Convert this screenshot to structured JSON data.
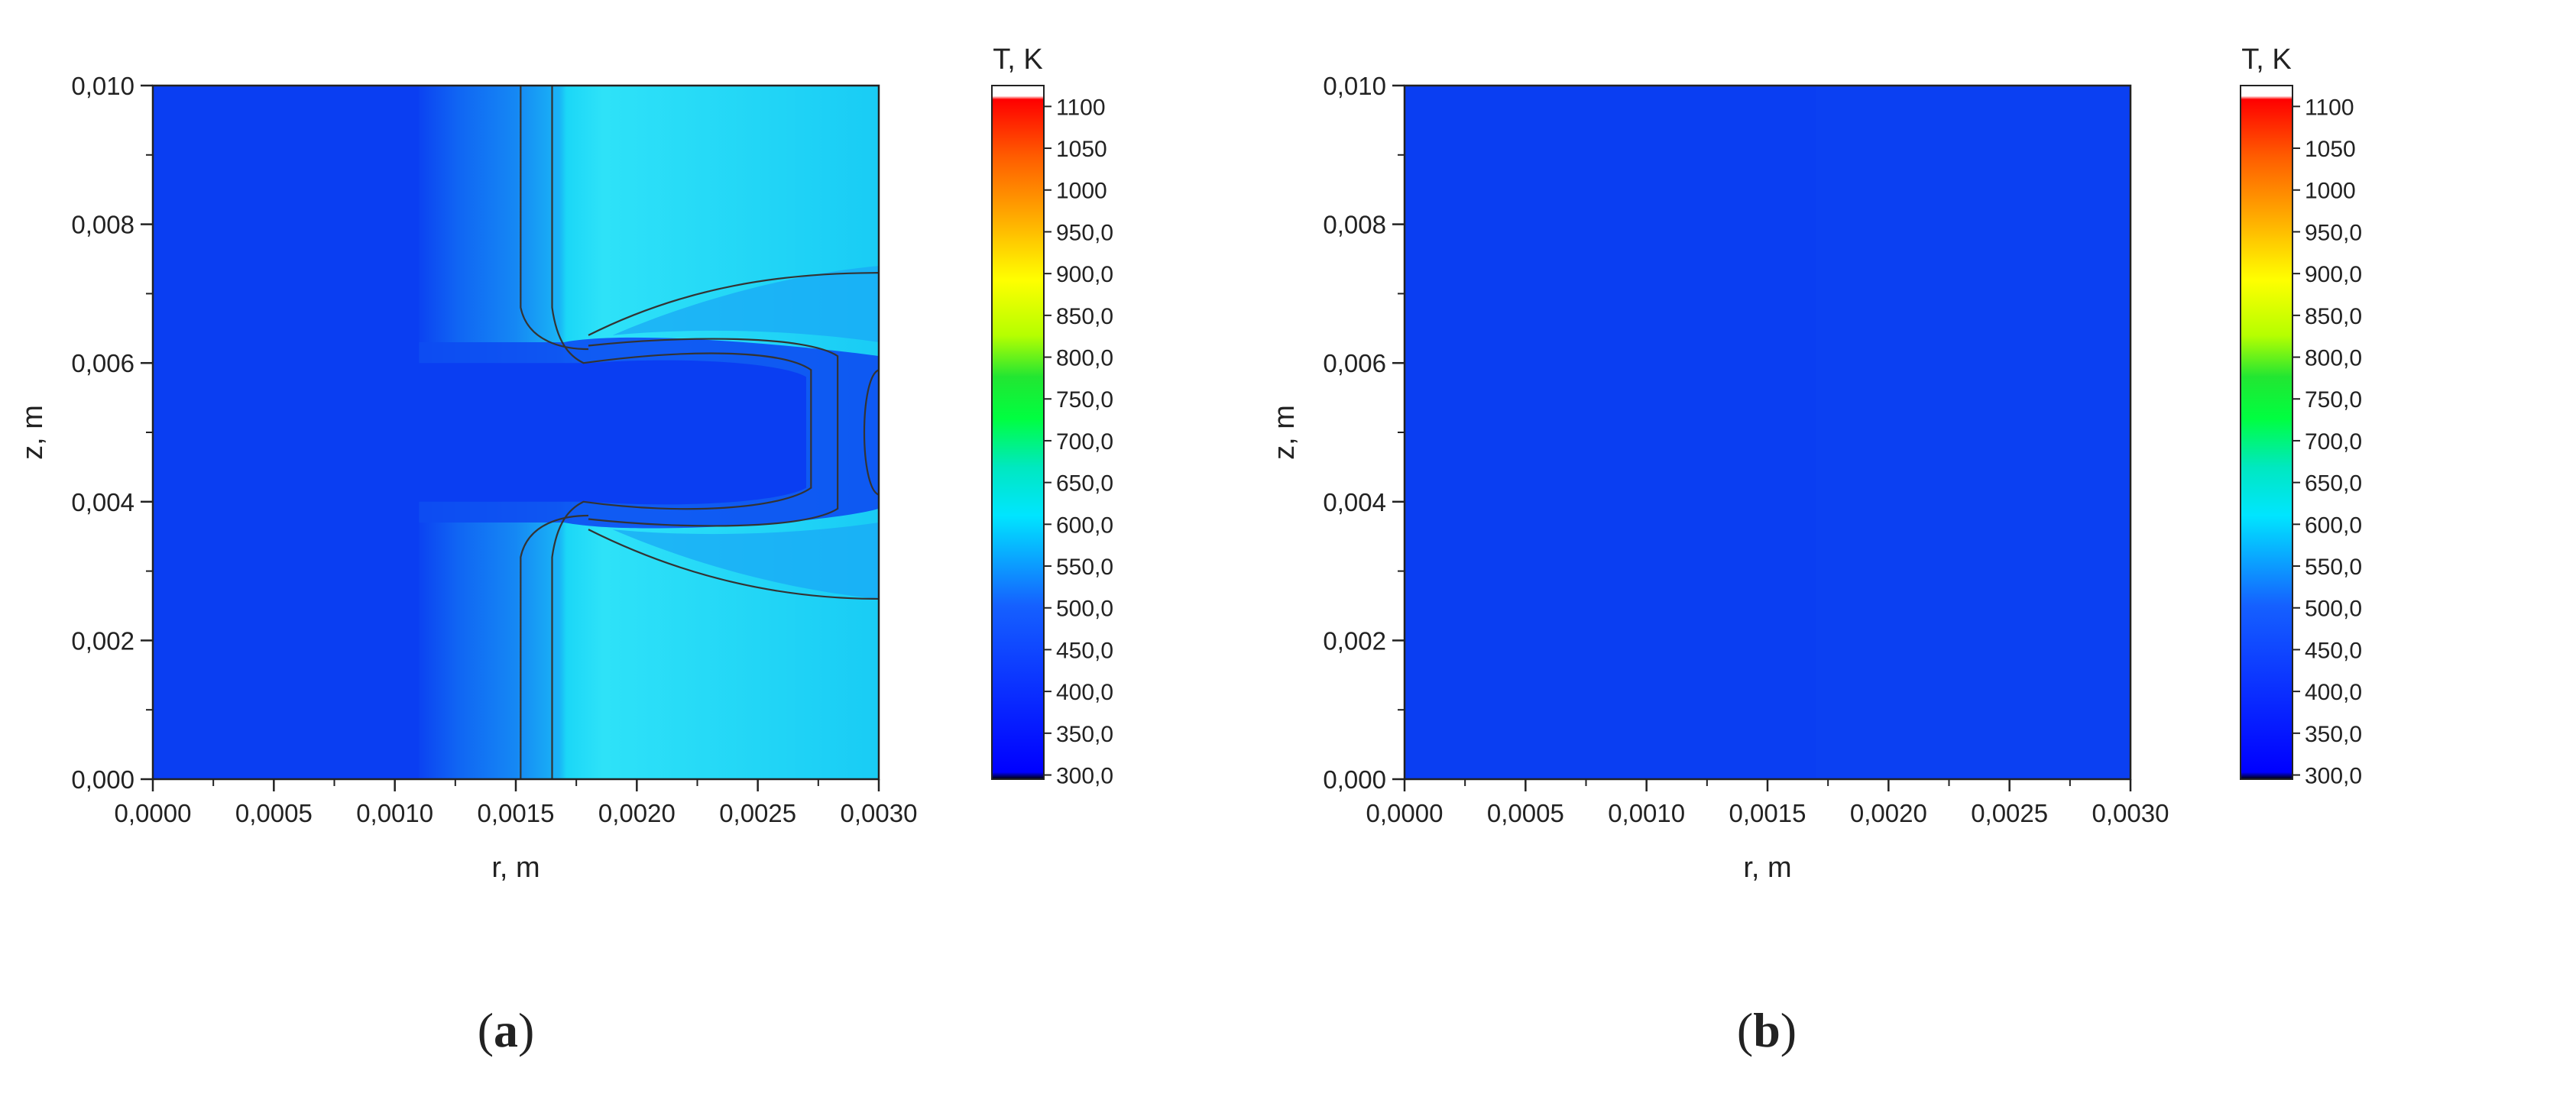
{
  "panels": [
    {
      "panel_label": "a",
      "chart_data": {
        "type": "heatmap",
        "xlabel": "r, m",
        "ylabel": "z, m",
        "xlim": [
          0,
          0.003
        ],
        "ylim": [
          0,
          0.01
        ],
        "x_ticks": [
          "0,0000",
          "0,0005",
          "0,0010",
          "0,0015",
          "0,0020",
          "0,0025",
          "0,0030"
        ],
        "y_ticks": [
          "0,000",
          "0,002",
          "0,004",
          "0,006",
          "0,008",
          "0,010"
        ],
        "colorbar": {
          "title": "T, K",
          "range": [
            295,
            1125
          ],
          "tick_labels": [
            "300,0",
            "350,0",
            "400,0",
            "450,0",
            "500,0",
            "550,0",
            "600,0",
            "650,0",
            "700,0",
            "750,0",
            "800,0",
            "850,0",
            "900,0",
            "950,0",
            "1000",
            "1050",
            "1100"
          ]
        },
        "colors": {
          "background_field": "#0a3ef2",
          "hot_field": "#1bd7f7",
          "contour_line": "#333333"
        }
      }
    },
    {
      "panel_label": "b",
      "chart_data": {
        "type": "heatmap",
        "xlabel": "r, m",
        "ylabel": "z, m",
        "xlim": [
          0,
          0.003
        ],
        "ylim": [
          0,
          0.01
        ],
        "x_ticks": [
          "0,0000",
          "0,0005",
          "0,0010",
          "0,0015",
          "0,0020",
          "0,0025",
          "0,0030"
        ],
        "y_ticks": [
          "0,000",
          "0,002",
          "0,004",
          "0,006",
          "0,008",
          "0,010"
        ],
        "colorbar": {
          "title": "T, K",
          "range": [
            295,
            1125
          ],
          "tick_labels": [
            "300,0",
            "350,0",
            "400,0",
            "450,0",
            "500,0",
            "550,0",
            "600,0",
            "650,0",
            "700,0",
            "750,0",
            "800,0",
            "850,0",
            "900,0",
            "950,0",
            "1000",
            "1050",
            "1100"
          ]
        },
        "colors": {
          "background_field": "#0a3ef2",
          "hot_field": "#0a3ef2",
          "contour_line": "#333333"
        }
      }
    }
  ]
}
